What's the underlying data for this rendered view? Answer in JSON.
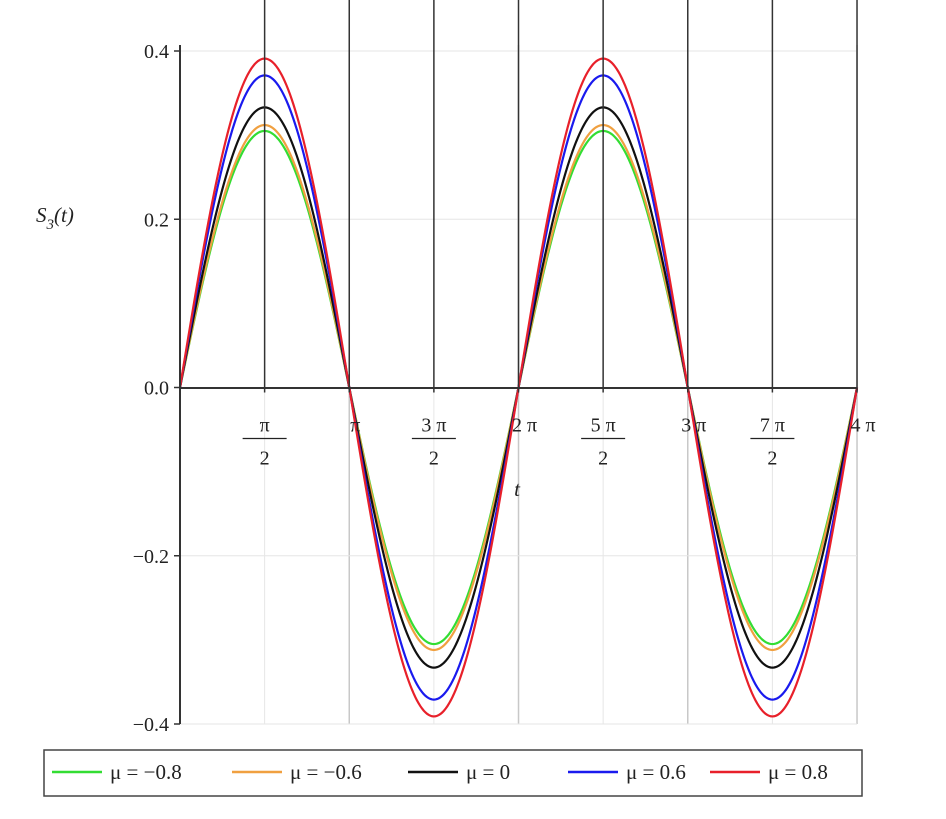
{
  "chart_data": {
    "type": "line",
    "title": "",
    "xlabel": "t",
    "ylabel_main": "S",
    "ylabel_sub": "3",
    "ylabel_suffix": "(t)",
    "xlim": [
      0,
      12.566
    ],
    "ylim": [
      -0.4,
      0.4
    ],
    "grid": true,
    "legend_position": "bottom",
    "x_ticks": [
      {
        "value": 1.5708,
        "num": "π",
        "den": "2"
      },
      {
        "value": 3.1416,
        "label": "π"
      },
      {
        "value": 4.7124,
        "num": "3 π",
        "den": "2"
      },
      {
        "value": 6.2832,
        "label": "2 π"
      },
      {
        "value": 7.854,
        "num": "5 π",
        "den": "2"
      },
      {
        "value": 9.4248,
        "label": "3 π"
      },
      {
        "value": 10.9956,
        "num": "7 π",
        "den": "2"
      },
      {
        "value": 12.5664,
        "label": "4 π"
      }
    ],
    "y_ticks": [
      {
        "value": 0.4,
        "label": "0.4"
      },
      {
        "value": 0.2,
        "label": "0.2"
      },
      {
        "value": 0.0,
        "label": "0.0"
      },
      {
        "value": -0.2,
        "label": "−0.2"
      },
      {
        "value": -0.4,
        "label": "−0.4"
      }
    ],
    "series": [
      {
        "name": "μ = −0.8",
        "color": "#33dd33",
        "amplitude": 0.305,
        "function": "S3(t) = amplitude * sin(t)",
        "period": 6.2832
      },
      {
        "name": "μ = −0.6",
        "color": "#f0a040",
        "amplitude": 0.312,
        "function": "S3(t) = amplitude * sin(t)",
        "period": 6.2832
      },
      {
        "name": "μ = 0",
        "color": "#111111",
        "amplitude": 0.333,
        "function": "S3(t) = amplitude * sin(t)",
        "period": 6.2832
      },
      {
        "name": "μ = 0.6",
        "color": "#1a1aee",
        "amplitude": 0.371,
        "function": "S3(t) = amplitude * sin(t)",
        "period": 6.2832
      },
      {
        "name": "μ = 0.8",
        "color": "#e8202a",
        "amplitude": 0.391,
        "function": "S3(t) = amplitude * sin(t)",
        "period": 6.2832
      }
    ]
  }
}
